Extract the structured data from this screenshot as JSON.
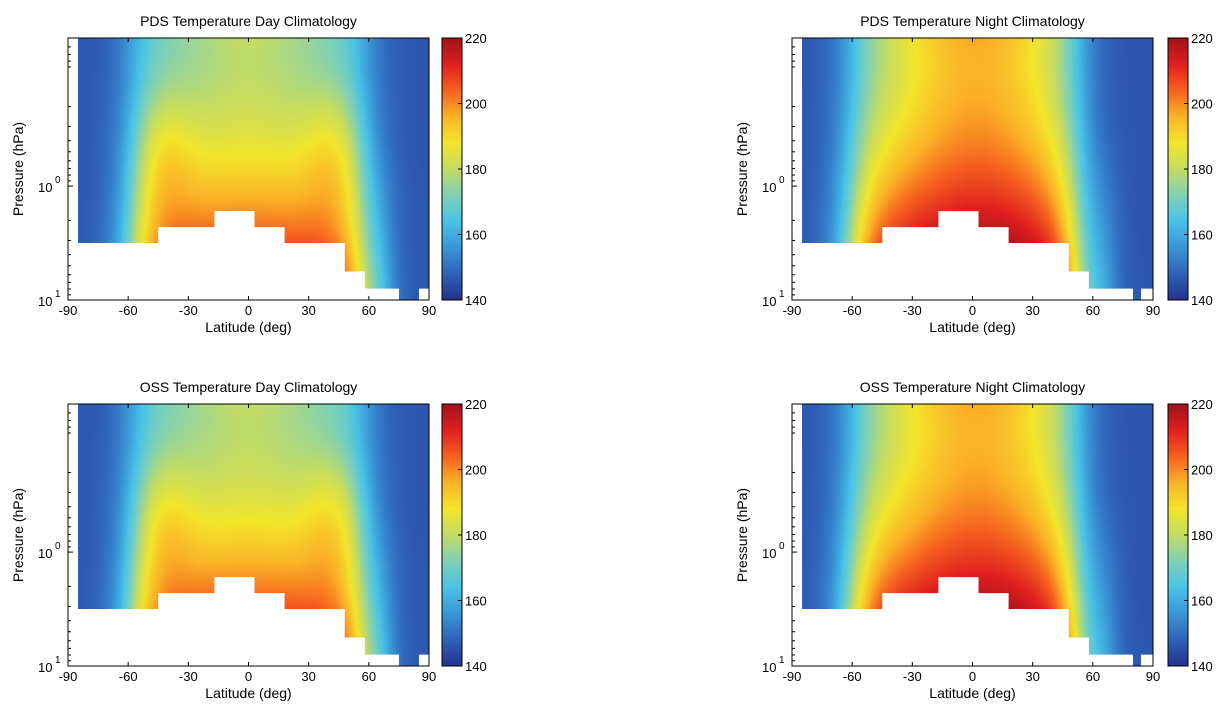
{
  "colorbar": {
    "min": 140,
    "max": 220,
    "ticks": [
      140,
      160,
      180,
      200,
      220
    ],
    "tick_labels": [
      "140",
      "160",
      "180",
      "200",
      "220"
    ],
    "colors": [
      "#24318f",
      "#2f62b8",
      "#3a95d6",
      "#49c3e8",
      "#7fd1b5",
      "#c4dc63",
      "#f3e52a",
      "#fbb326",
      "#f6601f",
      "#e01f1f",
      "#a01218"
    ]
  },
  "chart_data": [
    {
      "type": "heatmap",
      "title": "PDS Temperature Day Climatology",
      "xlabel": "Latitude (deg)",
      "ylabel": "Pressure (hPa)",
      "xlim": [
        -90,
        90
      ],
      "xticks": [
        -90,
        -60,
        -30,
        0,
        30,
        60,
        90
      ],
      "xtick_labels": [
        "-90",
        "-60",
        "-30",
        "0",
        "30",
        "60",
        "90"
      ],
      "yscale": "log",
      "ylim_log10": [
        -1.3,
        1.0
      ],
      "yticks": [
        {
          "base": "10",
          "exp": "0",
          "log10": 0
        },
        {
          "base": "10",
          "exp": "1",
          "log10": 1
        }
      ],
      "variant": "day",
      "valid_from_latitude": -85,
      "floor_log10": [
        [
          -85,
          0.5
        ],
        [
          -45,
          0.5
        ],
        [
          -45,
          0.36
        ],
        [
          -17,
          0.36
        ],
        [
          -17,
          0.22
        ],
        [
          3,
          0.22
        ],
        [
          3,
          0.36
        ],
        [
          18,
          0.36
        ],
        [
          18,
          0.5
        ],
        [
          38,
          0.5
        ],
        [
          38,
          0.5
        ],
        [
          48,
          0.5
        ],
        [
          48,
          0.75
        ],
        [
          58,
          0.75
        ],
        [
          58,
          0.9
        ],
        [
          75,
          0.9
        ],
        [
          75,
          1.05
        ],
        [
          85,
          1.05
        ],
        [
          85,
          0.9
        ],
        [
          90,
          0.9
        ]
      ],
      "colorbar_range": [
        140,
        220
      ]
    },
    {
      "type": "heatmap",
      "title": "PDS Temperature Night Climatology",
      "xlabel": "Latitude (deg)",
      "ylabel": "Pressure (hPa)",
      "xlim": [
        -90,
        90
      ],
      "xticks": [
        -90,
        -60,
        -30,
        0,
        30,
        60,
        90
      ],
      "xtick_labels": [
        "-90",
        "-60",
        "-30",
        "0",
        "30",
        "60",
        "90"
      ],
      "yscale": "log",
      "ylim_log10": [
        -1.3,
        1.0
      ],
      "yticks": [
        {
          "base": "10",
          "exp": "0",
          "log10": 0
        },
        {
          "base": "10",
          "exp": "1",
          "log10": 1
        }
      ],
      "variant": "night",
      "valid_from_latitude": -85,
      "floor_log10": [
        [
          -85,
          0.5
        ],
        [
          -45,
          0.5
        ],
        [
          -45,
          0.36
        ],
        [
          -17,
          0.36
        ],
        [
          -17,
          0.22
        ],
        [
          3,
          0.22
        ],
        [
          3,
          0.36
        ],
        [
          18,
          0.36
        ],
        [
          18,
          0.5
        ],
        [
          38,
          0.5
        ],
        [
          38,
          0.5
        ],
        [
          48,
          0.5
        ],
        [
          48,
          0.75
        ],
        [
          58,
          0.75
        ],
        [
          58,
          0.9
        ],
        [
          80,
          0.9
        ],
        [
          80,
          1.05
        ],
        [
          84,
          1.05
        ],
        [
          84,
          0.9
        ],
        [
          90,
          0.9
        ]
      ],
      "colorbar_range": [
        140,
        220
      ]
    },
    {
      "type": "heatmap",
      "title": "OSS Temperature Day Climatology",
      "xlabel": "Latitude (deg)",
      "ylabel": "Pressure (hPa)",
      "xlim": [
        -90,
        90
      ],
      "xticks": [
        -90,
        -60,
        -30,
        0,
        30,
        60,
        90
      ],
      "xtick_labels": [
        "-90",
        "-60",
        "-30",
        "0",
        "30",
        "60",
        "90"
      ],
      "yscale": "log",
      "ylim_log10": [
        -1.3,
        1.0
      ],
      "yticks": [
        {
          "base": "10",
          "exp": "0",
          "log10": 0
        },
        {
          "base": "10",
          "exp": "1",
          "log10": 1
        }
      ],
      "variant": "day",
      "valid_from_latitude": -85,
      "floor_log10": [
        [
          -85,
          0.5
        ],
        [
          -45,
          0.5
        ],
        [
          -45,
          0.36
        ],
        [
          -17,
          0.36
        ],
        [
          -17,
          0.22
        ],
        [
          3,
          0.22
        ],
        [
          3,
          0.36
        ],
        [
          18,
          0.36
        ],
        [
          18,
          0.5
        ],
        [
          38,
          0.5
        ],
        [
          38,
          0.5
        ],
        [
          48,
          0.5
        ],
        [
          48,
          0.75
        ],
        [
          58,
          0.75
        ],
        [
          58,
          0.9
        ],
        [
          75,
          0.9
        ],
        [
          75,
          1.05
        ],
        [
          85,
          1.05
        ],
        [
          85,
          0.9
        ],
        [
          90,
          0.9
        ]
      ],
      "colorbar_range": [
        140,
        220
      ]
    },
    {
      "type": "heatmap",
      "title": "OSS Temperature Night Climatology",
      "xlabel": "Latitude (deg)",
      "ylabel": "Pressure (hPa)",
      "xlim": [
        -90,
        90
      ],
      "xticks": [
        -90,
        -60,
        -30,
        0,
        30,
        60,
        90
      ],
      "xtick_labels": [
        "-90",
        "-60",
        "-30",
        "0",
        "30",
        "60",
        "90"
      ],
      "yscale": "log",
      "ylim_log10": [
        -1.3,
        1.0
      ],
      "yticks": [
        {
          "base": "10",
          "exp": "0",
          "log10": 0
        },
        {
          "base": "10",
          "exp": "1",
          "log10": 1
        }
      ],
      "variant": "night",
      "valid_from_latitude": -85,
      "floor_log10": [
        [
          -85,
          0.5
        ],
        [
          -45,
          0.5
        ],
        [
          -45,
          0.36
        ],
        [
          -17,
          0.36
        ],
        [
          -17,
          0.22
        ],
        [
          3,
          0.22
        ],
        [
          3,
          0.36
        ],
        [
          18,
          0.36
        ],
        [
          18,
          0.5
        ],
        [
          38,
          0.5
        ],
        [
          38,
          0.5
        ],
        [
          48,
          0.5
        ],
        [
          48,
          0.75
        ],
        [
          58,
          0.75
        ],
        [
          58,
          0.9
        ],
        [
          80,
          0.9
        ],
        [
          80,
          1.05
        ],
        [
          84,
          1.05
        ],
        [
          84,
          0.9
        ],
        [
          90,
          0.9
        ]
      ],
      "colorbar_range": [
        140,
        220
      ]
    }
  ]
}
